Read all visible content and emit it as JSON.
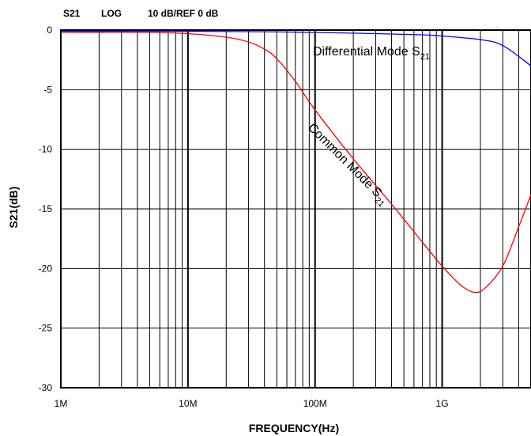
{
  "chart_data": {
    "type": "line",
    "header": {
      "param": "S21",
      "format": "LOG",
      "scale": "10 dB/REF 0 dB"
    },
    "title": "",
    "xlabel": "FREQUENCY(Hz)",
    "ylabel": "S21(dB)",
    "x_scale": "log",
    "xlim": [
      1000000,
      5000000000
    ],
    "ylim": [
      -30,
      0
    ],
    "grid": true,
    "x_ticks": [
      {
        "value": 1000000,
        "label": "1M"
      },
      {
        "value": 10000000,
        "label": "10M"
      },
      {
        "value": 100000000,
        "label": "100M"
      },
      {
        "value": 1000000000,
        "label": "1G"
      }
    ],
    "y_ticks": [
      {
        "value": 0,
        "label": "0"
      },
      {
        "value": -5,
        "label": "-5"
      },
      {
        "value": -10,
        "label": "-10"
      },
      {
        "value": -15,
        "label": "-15"
      },
      {
        "value": -20,
        "label": "-20"
      },
      {
        "value": -25,
        "label": "-25"
      },
      {
        "value": -30,
        "label": "-30"
      }
    ],
    "series": [
      {
        "name": "Differential Mode S21",
        "color": "#0000ff",
        "x": [
          1000000,
          10000000,
          50000000,
          100000000,
          300000000,
          700000000,
          1000000000,
          2000000000,
          3000000000,
          5000000000
        ],
        "y": [
          -0.1,
          -0.1,
          -0.15,
          -0.2,
          -0.3,
          -0.4,
          -0.5,
          -0.8,
          -1.3,
          -3.0
        ]
      },
      {
        "name": "Common Mode S21",
        "color": "#ff0000",
        "x": [
          1000000,
          5000000,
          10000000,
          20000000,
          30000000,
          40000000,
          50000000,
          70000000,
          100000000,
          200000000,
          400000000,
          700000000,
          1000000000,
          1400000000,
          1800000000,
          2200000000,
          3000000000,
          4000000000,
          5000000000
        ],
        "y": [
          -0.2,
          -0.2,
          -0.3,
          -0.6,
          -1.0,
          -1.6,
          -2.4,
          -4.3,
          -6.7,
          -10.8,
          -14.6,
          -17.8,
          -19.8,
          -21.4,
          -22.0,
          -21.6,
          -19.8,
          -16.5,
          -13.8
        ]
      }
    ],
    "annotations": [
      {
        "series": 0,
        "text": "Differential Mode S",
        "sub": "21"
      },
      {
        "series": 1,
        "text": "Common Mode S",
        "sub": "21"
      }
    ]
  }
}
